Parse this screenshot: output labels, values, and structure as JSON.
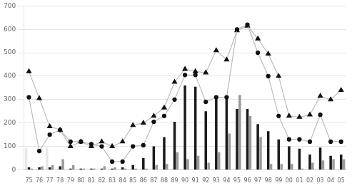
{
  "chart_data": {
    "type": "bar",
    "categories": [
      "75",
      "76",
      "77",
      "78",
      "79",
      "80",
      "81",
      "82",
      "83",
      "84",
      "85",
      "86",
      "87",
      "88",
      "89",
      "90",
      "91",
      "92",
      "93",
      "94",
      "95",
      "96",
      "97",
      "98",
      "99",
      "00",
      "01",
      "02",
      "03",
      "04",
      "05"
    ],
    "series": [
      {
        "type": "bar",
        "color": "#e8e8e8",
        "values": [
          95,
          0,
          95,
          0,
          0,
          0,
          0,
          0,
          0,
          0,
          0,
          0,
          0,
          0,
          0,
          0,
          0,
          0,
          0,
          0,
          0,
          0,
          0,
          0,
          0,
          0,
          0,
          0,
          0,
          0,
          0
        ]
      },
      {
        "type": "bar",
        "color": "#1a1a1a",
        "values": [
          10,
          10,
          10,
          15,
          5,
          5,
          5,
          5,
          5,
          10,
          20,
          50,
          100,
          140,
          205,
          360,
          355,
          250,
          310,
          310,
          260,
          260,
          195,
          165,
          130,
          100,
          90,
          65,
          95,
          60,
          65
        ]
      },
      {
        "type": "bar",
        "color": "#999999",
        "values": [
          5,
          15,
          20,
          45,
          20,
          5,
          5,
          15,
          10,
          5,
          5,
          5,
          20,
          25,
          75,
          45,
          60,
          30,
          75,
          155,
          320,
          230,
          140,
          25,
          25,
          25,
          5,
          30,
          40,
          45,
          45
        ]
      },
      {
        "type": "line",
        "color": "#bbbbbb",
        "marker": "circle",
        "values": [
          310,
          80,
          150,
          170,
          120,
          120,
          110,
          100,
          35,
          35,
          100,
          105,
          205,
          230,
          300,
          405,
          405,
          290,
          310,
          310,
          600,
          620,
          500,
          400,
          230,
          130,
          130,
          120,
          235,
          120,
          120
        ]
      },
      {
        "type": "line",
        "color": "#bbbbbb",
        "marker": "triangle",
        "values": [
          420,
          305,
          185,
          170,
          100,
          120,
          100,
          120,
          100,
          120,
          190,
          200,
          230,
          265,
          375,
          430,
          420,
          415,
          510,
          470,
          595,
          615,
          560,
          495,
          400,
          230,
          225,
          235,
          315,
          300,
          340
        ]
      }
    ],
    "ylim": [
      0,
      700
    ],
    "yticks": [
      0,
      100,
      200,
      300,
      400,
      500,
      600,
      700
    ],
    "grid": true
  }
}
